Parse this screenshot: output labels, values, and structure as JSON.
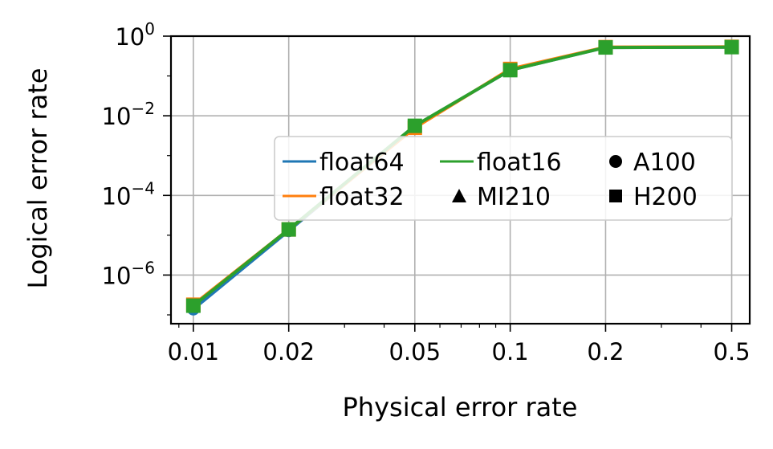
{
  "chart_data": {
    "type": "line",
    "xlabel": "Physical error rate",
    "ylabel": "Logical error rate",
    "x_scale": "log",
    "y_scale": "log",
    "xlim": [
      0.0085,
      0.57
    ],
    "ylim": [
      6e-08,
      1
    ],
    "grid": true,
    "x_ticks": [
      {
        "value": 0.01,
        "label": "0.01"
      },
      {
        "value": 0.02,
        "label": "0.02"
      },
      {
        "value": 0.05,
        "label": "0.05"
      },
      {
        "value": 0.1,
        "label": "0.1"
      },
      {
        "value": 0.2,
        "label": "0.2"
      },
      {
        "value": 0.5,
        "label": "0.5"
      }
    ],
    "y_ticks": [
      {
        "value": 1,
        "base": "10",
        "exp": "0"
      },
      {
        "value": 0.01,
        "base": "10",
        "exp": "−2"
      },
      {
        "value": 0.0001,
        "base": "10",
        "exp": "−4"
      },
      {
        "value": 1e-06,
        "base": "10",
        "exp": "−6"
      }
    ],
    "x": [
      0.01,
      0.02,
      0.05,
      0.1,
      0.2,
      0.5
    ],
    "series": [
      {
        "name": "float64",
        "color": "#1f77b4",
        "values": [
          1.4e-07,
          1.3e-05,
          0.0055,
          0.14,
          0.52,
          0.53
        ]
      },
      {
        "name": "float32",
        "color": "#ff7f0e",
        "values": [
          1.8e-07,
          1.4e-05,
          0.005,
          0.15,
          0.53,
          0.54
        ]
      },
      {
        "name": "float16",
        "color": "#2ca02c",
        "values": [
          1.7e-07,
          1.4e-05,
          0.0056,
          0.14,
          0.52,
          0.53
        ]
      }
    ],
    "legend": {
      "placement": "center-right",
      "entries": [
        {
          "label": "float64",
          "kind": "line",
          "color": "#1f77b4"
        },
        {
          "label": "float32",
          "kind": "line",
          "color": "#ff7f0e"
        },
        {
          "label": "float16",
          "kind": "line",
          "color": "#2ca02c"
        },
        {
          "label": "MI210",
          "kind": "marker",
          "marker": "triangle-icon"
        },
        {
          "label": "A100",
          "kind": "marker",
          "marker": "circle-icon"
        },
        {
          "label": "H200",
          "kind": "marker",
          "marker": "square-icon"
        }
      ]
    }
  }
}
